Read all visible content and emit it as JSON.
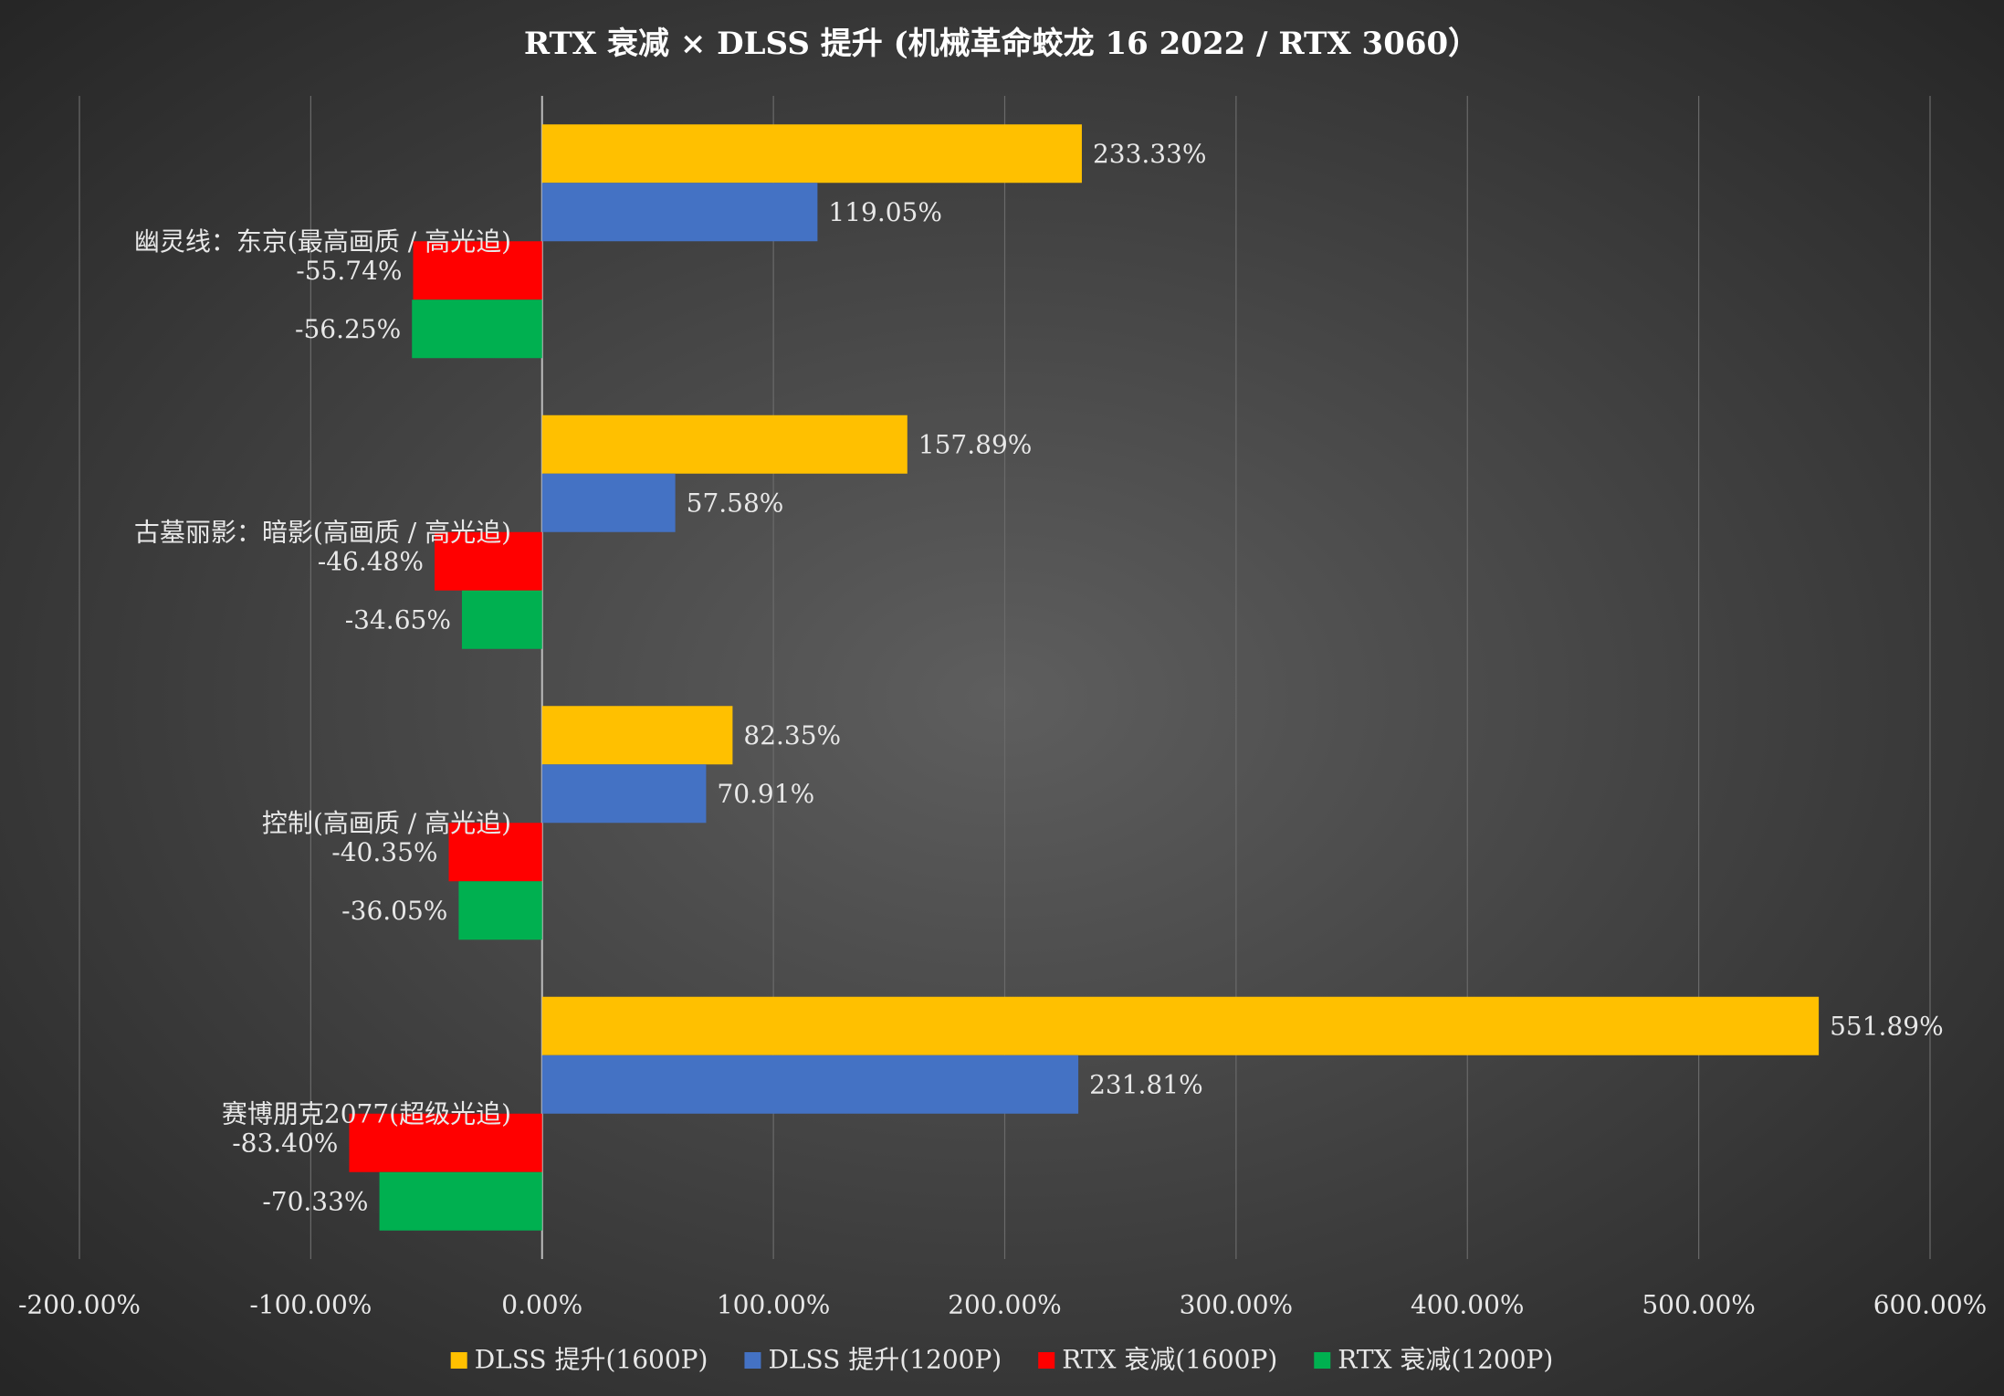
{
  "chart_data": {
    "type": "hbar",
    "title": "RTX 衰减 × DLSS 提升 (机械革命蛟龙 16 2022 / RTX 3060）",
    "categories": [
      "幽灵线：东京(最高画质 / 高光追)",
      "古墓丽影：暗影(高画质 / 高光追)",
      "控制(高画质 / 高光追)",
      "赛博朋克2077(超级光追)"
    ],
    "series": [
      {
        "name": "DLSS 提升(1600P)",
        "color": "#ffc000",
        "values": [
          233.33,
          157.89,
          82.35,
          551.89
        ],
        "value_labels": [
          "233.33%",
          "157.89%",
          "82.35%",
          "551.89%"
        ]
      },
      {
        "name": "DLSS 提升(1200P)",
        "color": "#4472c4",
        "values": [
          119.05,
          57.58,
          70.91,
          231.81
        ],
        "value_labels": [
          "119.05%",
          "57.58%",
          "70.91%",
          "231.81%"
        ]
      },
      {
        "name": "RTX 衰减(1600P)",
        "color": "#ff0000",
        "values": [
          -55.74,
          -46.48,
          -40.35,
          -83.4
        ],
        "value_labels": [
          "-55.74%",
          "-46.48%",
          "-40.35%",
          "-83.40%"
        ]
      },
      {
        "name": "RTX 衰减(1200P)",
        "color": "#00b050",
        "values": [
          -56.25,
          -34.65,
          -36.05,
          -70.33
        ],
        "value_labels": [
          "-56.25%",
          "-34.65%",
          "-36.05%",
          "-70.33%"
        ]
      }
    ],
    "xlim": [
      -200,
      600
    ],
    "xticks": [
      {
        "value": -200,
        "label": "-200.00%"
      },
      {
        "value": -100,
        "label": "-100.00%"
      },
      {
        "value": 0,
        "label": "0.00%"
      },
      {
        "value": 100,
        "label": "100.00%"
      },
      {
        "value": 200,
        "label": "200.00%"
      },
      {
        "value": 300,
        "label": "300.00%"
      },
      {
        "value": 400,
        "label": "400.00%"
      },
      {
        "value": 500,
        "label": "500.00%"
      },
      {
        "value": 600,
        "label": "600.00%"
      }
    ],
    "grid": true,
    "legend": "bottom"
  }
}
